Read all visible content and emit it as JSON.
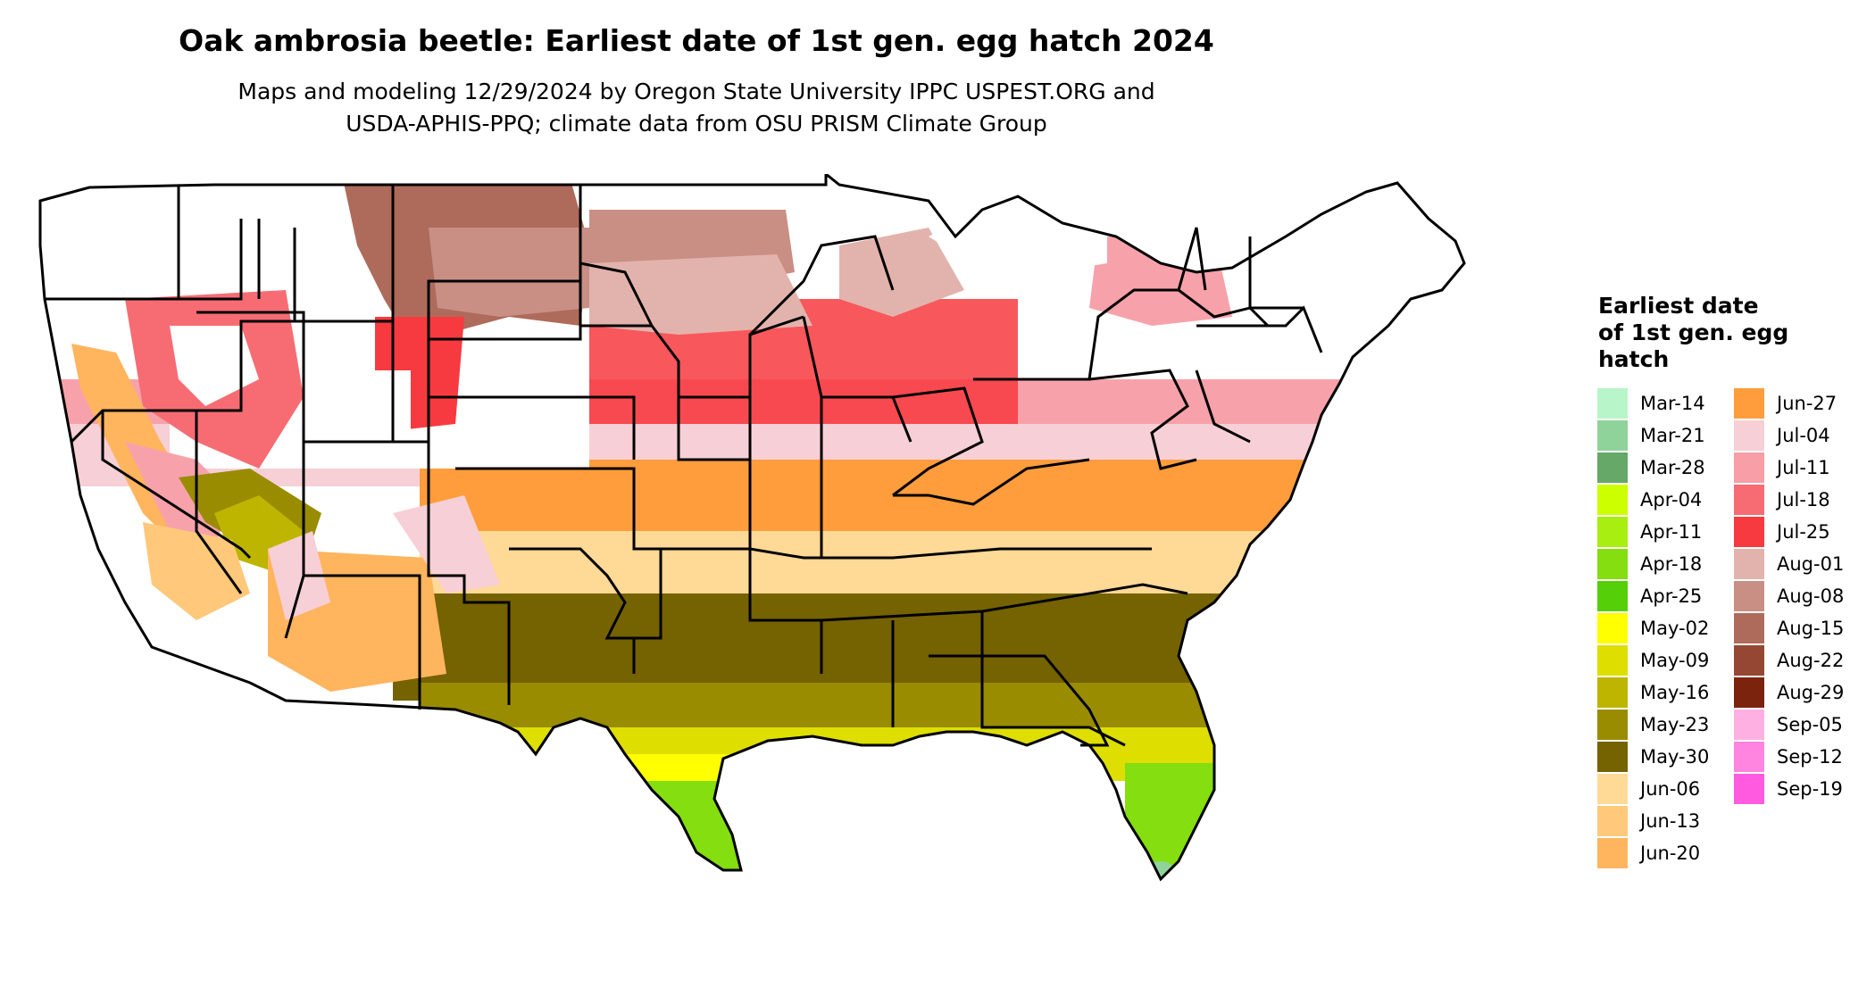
{
  "title": "Oak ambrosia beetle: Earliest date of 1st gen. egg hatch 2024",
  "subtitle_line1": "Maps and modeling 12/29/2024 by Oregon State University IPPC USPEST.ORG and",
  "subtitle_line2": "USDA-APHIS-PPQ; climate data from OSU PRISM Climate Group",
  "legend": {
    "title_lines": [
      "Earliest date",
      "of 1st gen. egg",
      "hatch"
    ],
    "column1": [
      {
        "label": "Mar-14",
        "color": "#b8f5c8"
      },
      {
        "label": "Mar-21",
        "color": "#8fd39b"
      },
      {
        "label": "Mar-28",
        "color": "#66a868"
      },
      {
        "label": "Apr-04",
        "color": "#ccff00"
      },
      {
        "label": "Apr-11",
        "color": "#a8ee10"
      },
      {
        "label": "Apr-18",
        "color": "#84de10"
      },
      {
        "label": "Apr-25",
        "color": "#55cf08"
      },
      {
        "label": "May-02",
        "color": "#ffff00"
      },
      {
        "label": "May-09",
        "color": "#dede00"
      },
      {
        "label": "May-16",
        "color": "#bdb500"
      },
      {
        "label": "May-23",
        "color": "#998c00"
      },
      {
        "label": "May-30",
        "color": "#756200"
      },
      {
        "label": "Jun-06",
        "color": "#ffd996"
      },
      {
        "label": "Jun-13",
        "color": "#ffc87a"
      },
      {
        "label": "Jun-20",
        "color": "#ffb55e"
      }
    ],
    "column2": [
      {
        "label": "Jun-27",
        "color": "#ff9d3c"
      },
      {
        "label": "Jul-04",
        "color": "#f7cfd6"
      },
      {
        "label": "Jul-11",
        "color": "#f79ea6"
      },
      {
        "label": "Jul-18",
        "color": "#f76c73"
      },
      {
        "label": "Jul-25",
        "color": "#f73a40"
      },
      {
        "label": "Aug-01",
        "color": "#e2b3ac"
      },
      {
        "label": "Aug-08",
        "color": "#c98f84"
      },
      {
        "label": "Aug-15",
        "color": "#ae6b5b"
      },
      {
        "label": "Aug-22",
        "color": "#954733"
      },
      {
        "label": "Aug-29",
        "color": "#7b230d"
      },
      {
        "label": "Sep-05",
        "color": "#ffb0e2"
      },
      {
        "label": "Sep-12",
        "color": "#ff85e0"
      },
      {
        "label": "Sep-19",
        "color": "#ff5ae0"
      }
    ]
  }
}
